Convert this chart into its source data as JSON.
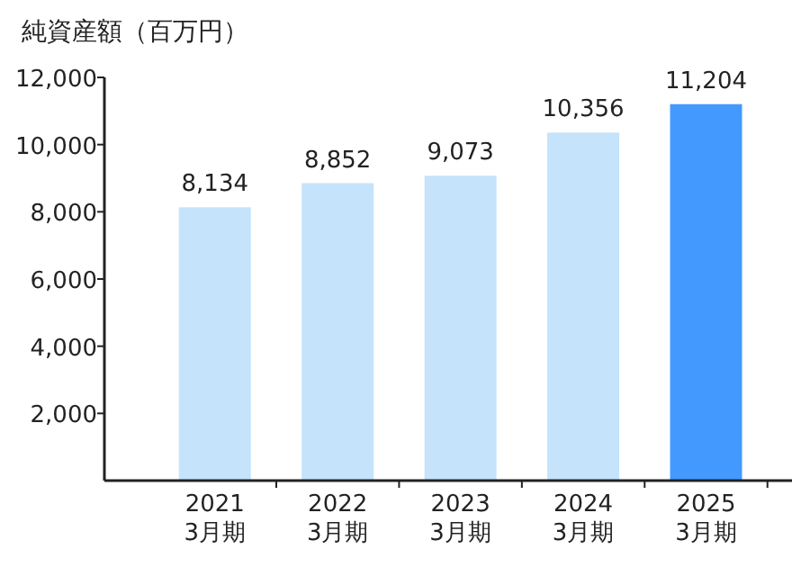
{
  "chart_data": {
    "type": "bar",
    "ylabel": "純資産額（百万円）",
    "categories": [
      "2021\n3月期",
      "2022\n3月期",
      "2023\n3月期",
      "2024\n3月期",
      "2025\n3月期"
    ],
    "values": [
      8134,
      8852,
      9073,
      10356,
      11204
    ],
    "colors": [
      "#c5e3fb",
      "#c5e3fb",
      "#c5e3fb",
      "#c5e3fb",
      "#4499ff"
    ],
    "ylim": [
      0,
      12000
    ],
    "yticks": [
      {
        "value": 2000,
        "label": "2,000"
      },
      {
        "value": 4000,
        "label": "4,000"
      },
      {
        "value": 6000,
        "label": "6,000"
      },
      {
        "value": 8000,
        "label": "8,000"
      },
      {
        "value": 10000,
        "label": "10,000"
      },
      {
        "value": 12000,
        "label": "12,000"
      }
    ],
    "value_labels": [
      "8,134",
      "8,852",
      "9,073",
      "10,356",
      "11,204"
    ]
  }
}
